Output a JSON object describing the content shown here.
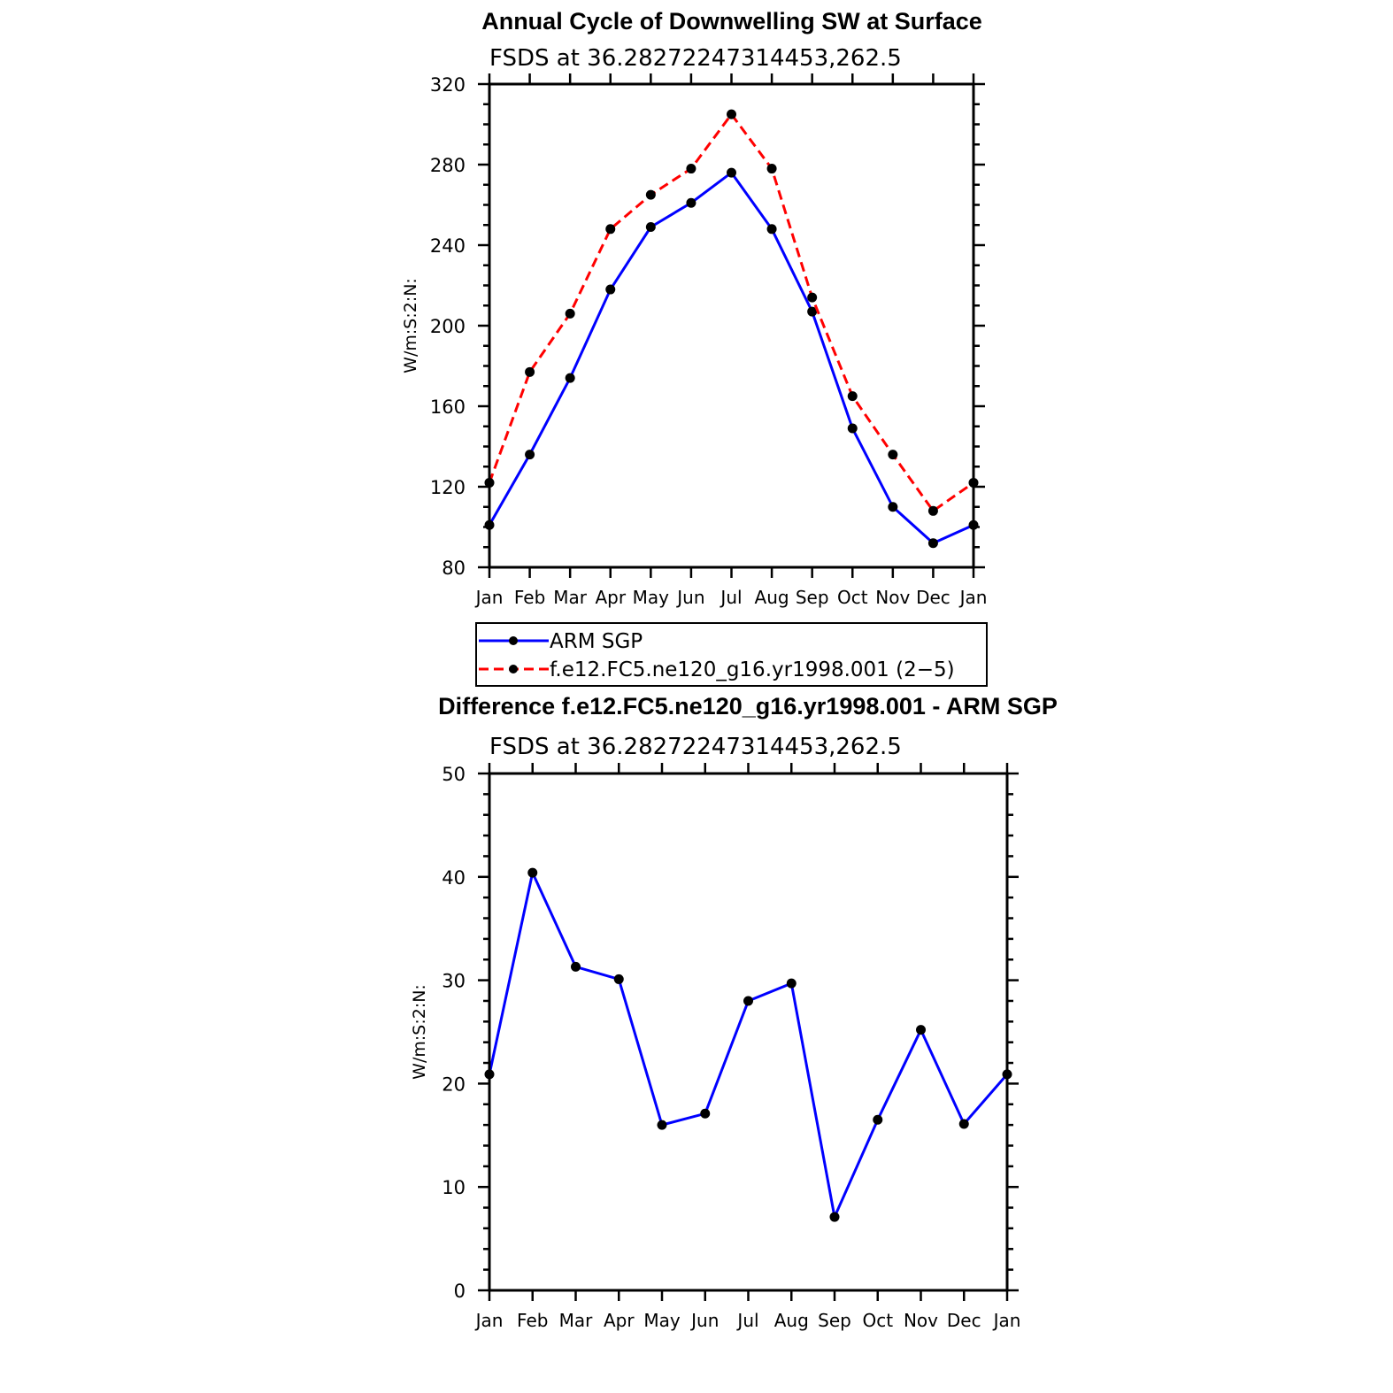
{
  "chart_data": [
    {
      "type": "line",
      "title": "Annual Cycle of Downwelling SW at Surface",
      "subtitle": "FSDS at 36.28272247314453,262.5",
      "xlabel": "",
      "ylabel": "W/m:S:2:N:",
      "categories": [
        "Jan",
        "Feb",
        "Mar",
        "Apr",
        "May",
        "Jun",
        "Jul",
        "Aug",
        "Sep",
        "Oct",
        "Nov",
        "Dec",
        "Jan"
      ],
      "ylim": [
        80,
        320
      ],
      "yticks": [
        "80",
        "120",
        "160",
        "200",
        "240",
        "280",
        "320"
      ],
      "grid": false,
      "legend_position": "bottom",
      "series": [
        {
          "name": "ARM SGP",
          "color": "#0000ff",
          "dash": "solid",
          "values": [
            101,
            136,
            174,
            218,
            249,
            261,
            276,
            248,
            207,
            149,
            110,
            92,
            101
          ]
        },
        {
          "name": "f.e12.FC5.ne120_g16.yr1998.001 (2−5)",
          "color": "#ff0000",
          "dash": "dashed",
          "values": [
            122,
            177,
            206,
            248,
            265,
            278,
            305,
            278,
            214,
            165,
            136,
            108,
            122
          ]
        }
      ]
    },
    {
      "type": "line",
      "title": "Difference f.e12.FC5.ne120_g16.yr1998.001 - ARM SGP",
      "subtitle": "FSDS at 36.28272247314453,262.5",
      "xlabel": "",
      "ylabel": "W/m:S:2:N:",
      "categories": [
        "Jan",
        "Feb",
        "Mar",
        "Apr",
        "May",
        "Jun",
        "Jul",
        "Aug",
        "Sep",
        "Oct",
        "Nov",
        "Dec",
        "Jan"
      ],
      "ylim": [
        0,
        50
      ],
      "yticks": [
        "0",
        "10",
        "20",
        "30",
        "40",
        "50"
      ],
      "grid": false,
      "series": [
        {
          "name": "Difference",
          "color": "#0000ff",
          "dash": "solid",
          "values": [
            20.9,
            40.4,
            31.3,
            30.1,
            16.0,
            17.1,
            28.0,
            29.7,
            7.1,
            16.5,
            25.2,
            16.1,
            20.9
          ]
        }
      ]
    }
  ]
}
